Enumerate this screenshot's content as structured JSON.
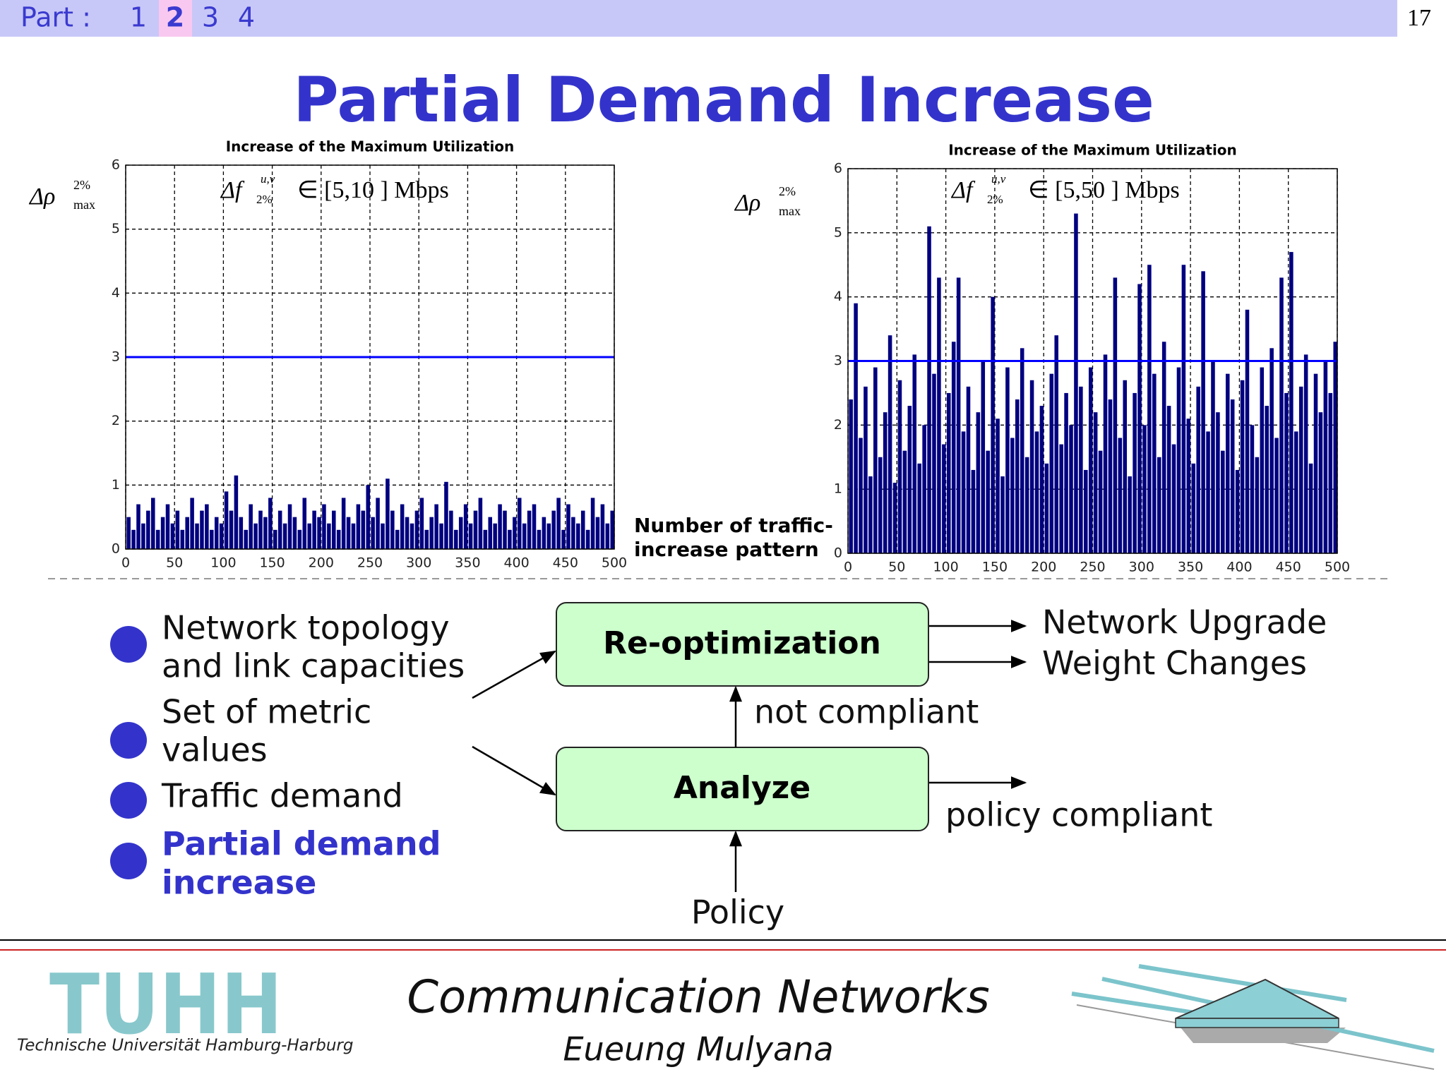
{
  "header": {
    "part_label": "Part :",
    "parts": [
      "1",
      "2",
      "3",
      "4"
    ],
    "page_number": "17"
  },
  "title": "Partial Demand Increase",
  "chart_data": [
    {
      "type": "bar",
      "title": "Increase of the Maximum Utilization",
      "ylabel": {
        "symbol": "Δρ",
        "sup": "2%",
        "sub": "max"
      },
      "annotation": {
        "symbol": "Δf",
        "sup": "u,v",
        "sub": "2%",
        "text": "∈ [5,10 ] Mbps"
      },
      "xlabel": [
        "Number of traffic-",
        "increase pattern"
      ],
      "color": "#000080",
      "threshold": {
        "value": 3,
        "color": "#0000ff"
      },
      "xlim": [
        0,
        500
      ],
      "ylim": [
        0,
        6
      ],
      "xticks": [
        0,
        50,
        100,
        150,
        200,
        250,
        300,
        350,
        400,
        450,
        500
      ],
      "yticks": [
        0,
        1,
        2,
        3,
        4,
        5,
        6
      ],
      "grid": true,
      "x": [
        3,
        8,
        13,
        18,
        23,
        28,
        33,
        38,
        43,
        48,
        53,
        58,
        63,
        68,
        73,
        78,
        83,
        88,
        93,
        98,
        103,
        108,
        113,
        118,
        123,
        128,
        133,
        138,
        143,
        148,
        153,
        158,
        163,
        168,
        173,
        178,
        183,
        188,
        193,
        198,
        203,
        208,
        213,
        218,
        223,
        228,
        233,
        238,
        243,
        248,
        253,
        258,
        263,
        268,
        273,
        278,
        283,
        288,
        293,
        298,
        303,
        308,
        313,
        318,
        323,
        328,
        333,
        338,
        343,
        348,
        353,
        358,
        363,
        368,
        373,
        378,
        383,
        388,
        393,
        398,
        403,
        408,
        413,
        418,
        423,
        428,
        433,
        438,
        443,
        448,
        453,
        458,
        463,
        468,
        473,
        478,
        483,
        488,
        493,
        498
      ],
      "values": [
        0.5,
        0.3,
        0.7,
        0.4,
        0.6,
        0.8,
        0.3,
        0.5,
        0.7,
        0.4,
        0.6,
        0.3,
        0.5,
        0.8,
        0.4,
        0.6,
        0.7,
        0.3,
        0.5,
        0.4,
        0.9,
        0.6,
        1.15,
        0.5,
        0.3,
        0.7,
        0.4,
        0.6,
        0.5,
        0.8,
        0.3,
        0.6,
        0.4,
        0.7,
        0.5,
        0.3,
        0.8,
        0.4,
        0.6,
        0.5,
        0.7,
        0.4,
        0.6,
        0.3,
        0.8,
        0.5,
        0.4,
        0.7,
        0.6,
        1.0,
        0.5,
        0.8,
        0.4,
        1.1,
        0.6,
        0.3,
        0.7,
        0.5,
        0.4,
        0.6,
        0.8,
        0.3,
        0.5,
        0.7,
        0.4,
        1.05,
        0.6,
        0.3,
        0.5,
        0.7,
        0.4,
        0.6,
        0.8,
        0.3,
        0.5,
        0.4,
        0.7,
        0.6,
        0.3,
        0.5,
        0.8,
        0.4,
        0.6,
        0.7,
        0.3,
        0.5,
        0.4,
        0.6,
        0.8,
        0.3,
        0.7,
        0.5,
        0.4,
        0.6,
        0.3,
        0.8,
        0.5,
        0.7,
        0.4,
        0.6
      ]
    },
    {
      "type": "bar",
      "title": "Increase of the Maximum Utilization",
      "ylabel": {
        "symbol": "Δρ",
        "sup": "2%",
        "sub": "max"
      },
      "annotation": {
        "symbol": "Δf",
        "sup": "u,v",
        "sub": "2%",
        "text": "∈ [5,50 ] Mbps"
      },
      "color": "#000080",
      "threshold": {
        "value": 3,
        "color": "#0000ff"
      },
      "xlim": [
        0,
        500
      ],
      "ylim": [
        0,
        6
      ],
      "xticks": [
        0,
        50,
        100,
        150,
        200,
        250,
        300,
        350,
        400,
        450,
        500
      ],
      "yticks": [
        0,
        1,
        2,
        3,
        4,
        5,
        6
      ],
      "grid": true,
      "x": [
        3,
        8,
        13,
        18,
        23,
        28,
        33,
        38,
        43,
        48,
        53,
        58,
        63,
        68,
        73,
        78,
        83,
        88,
        93,
        98,
        103,
        108,
        113,
        118,
        123,
        128,
        133,
        138,
        143,
        148,
        153,
        158,
        163,
        168,
        173,
        178,
        183,
        188,
        193,
        198,
        203,
        208,
        213,
        218,
        223,
        228,
        233,
        238,
        243,
        248,
        253,
        258,
        263,
        268,
        273,
        278,
        283,
        288,
        293,
        298,
        303,
        308,
        313,
        318,
        323,
        328,
        333,
        338,
        343,
        348,
        353,
        358,
        363,
        368,
        373,
        378,
        383,
        388,
        393,
        398,
        403,
        408,
        413,
        418,
        423,
        428,
        433,
        438,
        443,
        448,
        453,
        458,
        463,
        468,
        473,
        478,
        483,
        488,
        493,
        498
      ],
      "values": [
        2.4,
        3.9,
        1.8,
        2.6,
        1.2,
        2.9,
        1.5,
        2.2,
        3.4,
        1.1,
        2.7,
        1.6,
        2.3,
        3.1,
        1.4,
        2.0,
        5.1,
        2.8,
        4.3,
        1.7,
        2.5,
        3.3,
        4.3,
        1.9,
        2.6,
        1.3,
        2.2,
        3.0,
        1.6,
        4.0,
        2.1,
        1.2,
        2.9,
        1.8,
        2.4,
        3.2,
        1.5,
        2.7,
        1.9,
        2.3,
        1.4,
        2.8,
        3.4,
        1.7,
        2.5,
        2.0,
        5.3,
        2.6,
        1.3,
        2.9,
        2.2,
        1.6,
        3.1,
        2.4,
        4.3,
        1.8,
        2.7,
        1.2,
        2.5,
        4.2,
        2.0,
        4.5,
        2.8,
        1.5,
        3.3,
        2.3,
        1.7,
        2.9,
        4.5,
        2.1,
        1.4,
        2.6,
        4.4,
        1.9,
        3.0,
        2.2,
        1.6,
        2.8,
        2.4,
        1.3,
        2.7,
        3.8,
        2.0,
        1.5,
        2.9,
        2.3,
        3.2,
        1.8,
        4.3,
        2.5,
        4.7,
        1.9,
        2.6,
        3.1,
        1.4,
        2.8,
        2.2,
        3.0,
        2.5,
        3.3
      ]
    }
  ],
  "bullets": [
    [
      "Network topology",
      "and link capacities"
    ],
    [
      "Set of metric",
      "values"
    ],
    [
      "Traffic demand"
    ],
    [
      "Partial demand",
      "increase"
    ]
  ],
  "diagram": {
    "reoptimize": "Re-optimization",
    "analyze": "Analyze",
    "not_compliant": "not compliant",
    "outputs": [
      "Network Upgrade",
      "Weight Changes"
    ],
    "compliant": "policy compliant",
    "policy": "Policy"
  },
  "footer": {
    "logo": "TUHH",
    "university": "Technische Universität Hamburg-Harburg",
    "course": "Communication Networks",
    "author": "Eueung Mulyana"
  }
}
